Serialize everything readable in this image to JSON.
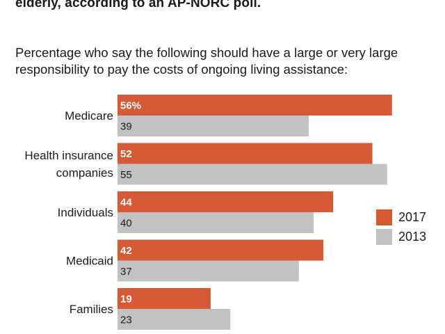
{
  "headline": "elderly, according to an AP-NORC poll.",
  "subtitle": "Percentage who say the following should have a large or very large responsibility to pay the costs of ongoing living assistance:",
  "colors": {
    "2017": "#d75a37",
    "2013": "#c2c2c4"
  },
  "chart_data": {
    "type": "bar",
    "orientation": "horizontal",
    "categories": [
      "Medicare",
      "Health insurance companies",
      "Individuals",
      "Medicaid",
      "Families"
    ],
    "category_lines": [
      [
        "Medicare"
      ],
      [
        "Health insurance",
        "companies"
      ],
      [
        "Individuals"
      ],
      [
        "Medicaid"
      ],
      [
        "Families"
      ]
    ],
    "series": [
      {
        "name": "2017",
        "values": [
          56,
          52,
          44,
          42,
          19
        ],
        "labels": [
          "56%",
          "52",
          "44",
          "42",
          "19"
        ]
      },
      {
        "name": "2013",
        "values": [
          39,
          55,
          40,
          37,
          23
        ],
        "labels": [
          "39",
          "55",
          "40",
          "37",
          "23"
        ]
      }
    ],
    "legend_position": "right",
    "grid": false
  }
}
